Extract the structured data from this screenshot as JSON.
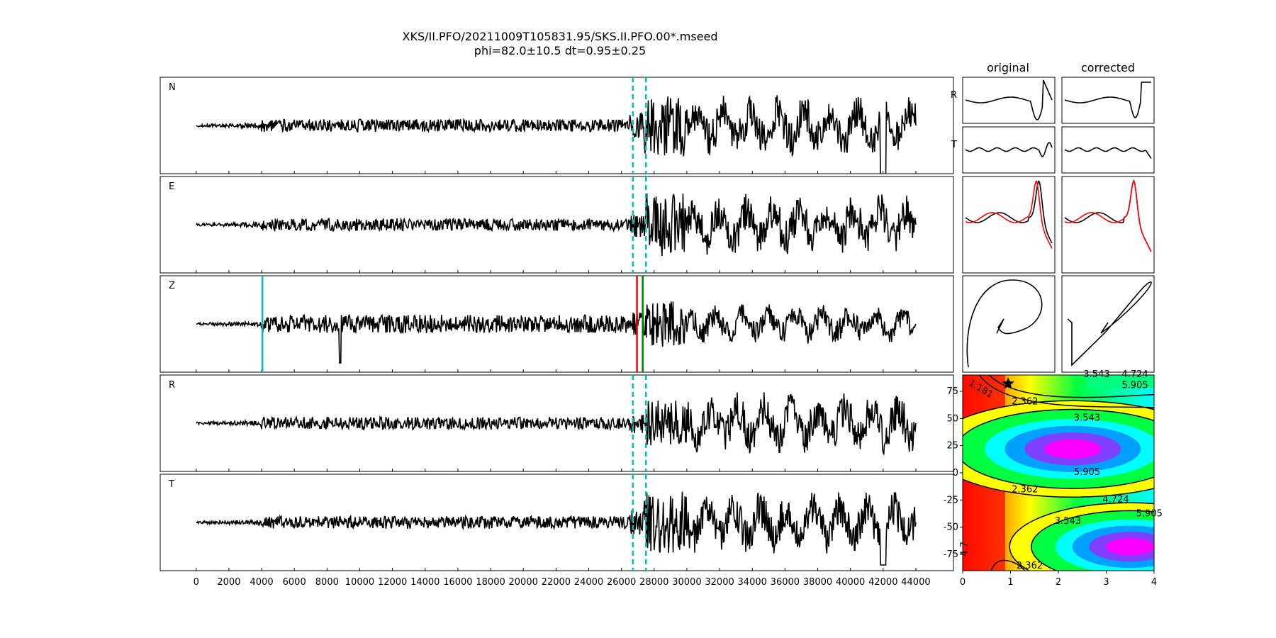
{
  "figure": {
    "title_line1": "XKS/II.PFO/20211009T105831.95/SKS.II.PFO.00*.mseed",
    "title_line2": "phi=82.0±10.5 dt=0.95±0.25",
    "col_original": "original",
    "col_corrected": "corrected",
    "colors": {
      "trace": "#000000",
      "window": "#00bfbf",
      "pick_red": "#ff0000",
      "pick_green": "#008000",
      "corrected_red": "#ff0000"
    }
  },
  "chart_data": [
    {
      "type": "line",
      "name": "waveform-panels",
      "traces": [
        "N",
        "E",
        "Z",
        "R",
        "T"
      ],
      "xlim": [
        -2200,
        46300
      ],
      "xticks": [
        0,
        2000,
        4000,
        6000,
        8000,
        10000,
        12000,
        14000,
        16000,
        18000,
        20000,
        22000,
        24000,
        26000,
        28000,
        30000,
        32000,
        34000,
        36000,
        38000,
        40000,
        42000,
        44000
      ],
      "x_data_range": [
        0,
        44000
      ],
      "window_lines": [
        26700,
        27500
      ],
      "z_picks": [
        {
          "x": 4050,
          "color": "#00bfbf"
        },
        {
          "x": 26950,
          "color": "#ff0000"
        },
        {
          "x": 27300,
          "color": "#008000"
        }
      ]
    },
    {
      "type": "line",
      "name": "particle-panels",
      "row_labels": [
        "R",
        "T"
      ],
      "overlay_colors": [
        "#000000",
        "#ff0000"
      ]
    },
    {
      "type": "heatmap",
      "name": "error-surface",
      "xlim": [
        0,
        4
      ],
      "ylim": [
        -90,
        90
      ],
      "xticks": [
        0,
        1,
        2,
        3,
        4
      ],
      "yticks": [
        75,
        50,
        25,
        0,
        -25,
        -50,
        -75
      ],
      "best_fit": {
        "x": 0.95,
        "y": 82.0
      },
      "contour_labels": [
        "1.181",
        "2.362",
        "3.543",
        "4.724",
        "5.905",
        "3.543",
        "5.905",
        "2.362",
        "4.724",
        "5.905",
        "3.543",
        "2.362",
        "4.7"
      ]
    }
  ]
}
